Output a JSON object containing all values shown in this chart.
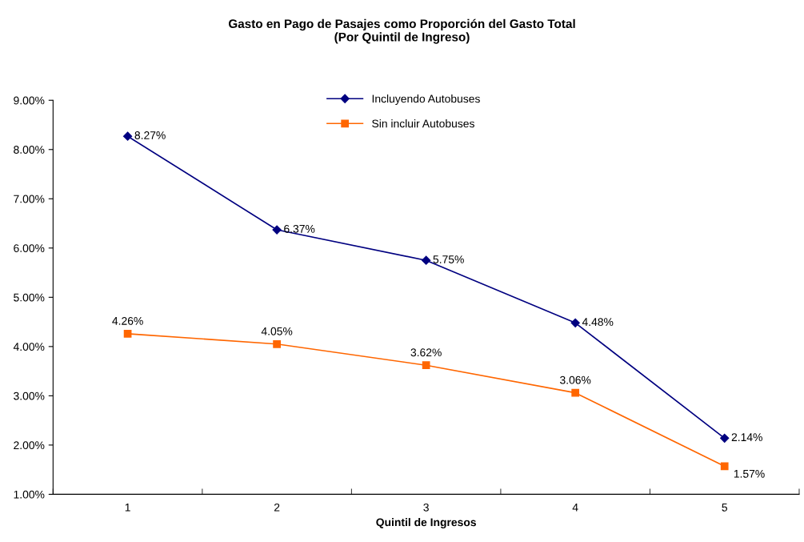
{
  "chart_data": {
    "type": "line",
    "title": "Gasto en Pago de Pasajes como Proporción del Gasto Total\n(Por Quintil de Ingreso)",
    "xlabel": "Quintil de Ingresos",
    "categories": [
      "1",
      "2",
      "3",
      "4",
      "5"
    ],
    "series": [
      {
        "name": "Incluyendo Autobuses",
        "color": "#000080",
        "marker": "diamond",
        "values": [
          8.27,
          6.37,
          5.75,
          4.48,
          2.14
        ],
        "value_labels": [
          "8.27%",
          "6.37%",
          "5.75%",
          "4.48%",
          "2.14%"
        ]
      },
      {
        "name": "Sin incluir Autobuses",
        "color": "#ff6600",
        "marker": "square",
        "values": [
          4.26,
          4.05,
          3.62,
          3.06,
          1.57
        ],
        "value_labels": [
          "4.26%",
          "4.05%",
          "3.62%",
          "3.06%",
          "1.57%"
        ]
      }
    ],
    "ylim": [
      1,
      9
    ],
    "yticks": [
      {
        "value": 1,
        "label": "1.00%"
      },
      {
        "value": 2,
        "label": "2.00%"
      },
      {
        "value": 3,
        "label": "3.00%"
      },
      {
        "value": 4,
        "label": "4.00%"
      },
      {
        "value": 5,
        "label": "5.00%"
      },
      {
        "value": 6,
        "label": "6.00%"
      },
      {
        "value": 7,
        "label": "7.00%"
      },
      {
        "value": 8,
        "label": "8.00%"
      },
      {
        "value": 9,
        "label": "9.00%"
      }
    ],
    "grid": false,
    "legend": "top"
  }
}
